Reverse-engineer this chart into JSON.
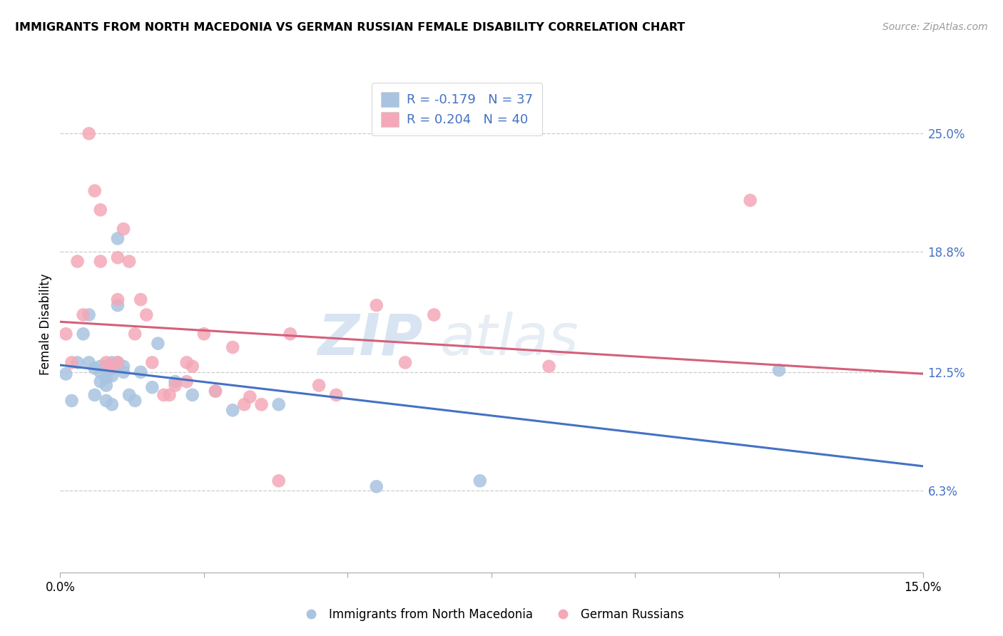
{
  "title": "IMMIGRANTS FROM NORTH MACEDONIA VS GERMAN RUSSIAN FEMALE DISABILITY CORRELATION CHART",
  "source": "Source: ZipAtlas.com",
  "ylabel": "Female Disability",
  "xlim": [
    0.0,
    0.15
  ],
  "ylim": [
    0.02,
    0.28
  ],
  "yticks": [
    0.063,
    0.125,
    0.188,
    0.25
  ],
  "ytick_labels": [
    "6.3%",
    "12.5%",
    "18.8%",
    "25.0%"
  ],
  "blue_R": "-0.179",
  "blue_N": "37",
  "pink_R": "0.204",
  "pink_N": "40",
  "blue_color": "#a8c4e0",
  "pink_color": "#f4a8b8",
  "blue_line_color": "#4472c4",
  "pink_line_color": "#d4607a",
  "watermark_zip": "ZIP",
  "watermark_atlas": "atlas",
  "blue_points_x": [
    0.001,
    0.002,
    0.003,
    0.004,
    0.005,
    0.005,
    0.006,
    0.006,
    0.007,
    0.007,
    0.007,
    0.008,
    0.008,
    0.008,
    0.008,
    0.009,
    0.009,
    0.009,
    0.009,
    0.01,
    0.01,
    0.01,
    0.011,
    0.011,
    0.012,
    0.013,
    0.014,
    0.016,
    0.017,
    0.02,
    0.023,
    0.027,
    0.03,
    0.038,
    0.055,
    0.073,
    0.125
  ],
  "blue_points_y": [
    0.124,
    0.11,
    0.13,
    0.145,
    0.13,
    0.155,
    0.127,
    0.113,
    0.128,
    0.125,
    0.12,
    0.128,
    0.122,
    0.118,
    0.11,
    0.13,
    0.127,
    0.123,
    0.108,
    0.195,
    0.16,
    0.13,
    0.128,
    0.125,
    0.113,
    0.11,
    0.125,
    0.117,
    0.14,
    0.12,
    0.113,
    0.115,
    0.105,
    0.108,
    0.065,
    0.068,
    0.126
  ],
  "pink_points_x": [
    0.001,
    0.002,
    0.003,
    0.004,
    0.005,
    0.006,
    0.007,
    0.007,
    0.008,
    0.009,
    0.01,
    0.01,
    0.01,
    0.011,
    0.012,
    0.013,
    0.014,
    0.015,
    0.016,
    0.018,
    0.019,
    0.02,
    0.022,
    0.022,
    0.023,
    0.025,
    0.027,
    0.03,
    0.032,
    0.033,
    0.035,
    0.038,
    0.04,
    0.045,
    0.048,
    0.055,
    0.06,
    0.065,
    0.085,
    0.12
  ],
  "pink_points_y": [
    0.145,
    0.13,
    0.183,
    0.155,
    0.25,
    0.22,
    0.21,
    0.183,
    0.13,
    0.128,
    0.185,
    0.163,
    0.13,
    0.2,
    0.183,
    0.145,
    0.163,
    0.155,
    0.13,
    0.113,
    0.113,
    0.118,
    0.12,
    0.13,
    0.128,
    0.145,
    0.115,
    0.138,
    0.108,
    0.112,
    0.108,
    0.068,
    0.145,
    0.118,
    0.113,
    0.16,
    0.13,
    0.155,
    0.128,
    0.215
  ]
}
